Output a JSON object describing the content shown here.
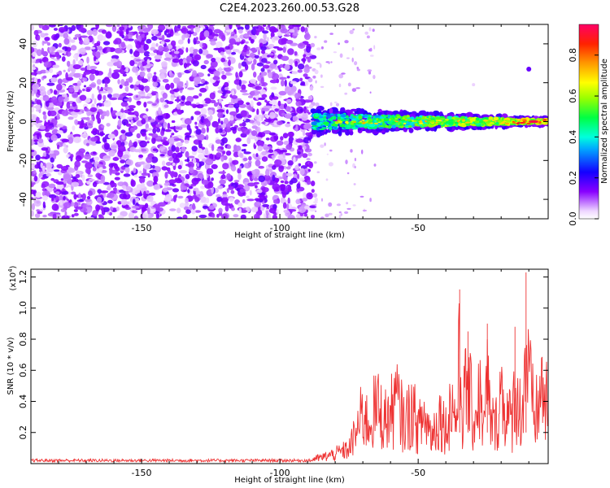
{
  "title": "C2E4.2023.260.00.53.G28",
  "chart_data": [
    {
      "type": "heatmap",
      "xlabel": "Height of straight line (km)",
      "ylabel": "Frequency (Hz)",
      "xlim": [
        -190,
        -3
      ],
      "ylim": [
        -50,
        50
      ],
      "xticks": [
        -150,
        -100,
        -50
      ],
      "yticks": [
        -40,
        -20,
        0,
        20,
        40
      ],
      "colorbar": {
        "label": "Normalized spectral amplitude",
        "range": [
          0,
          0.95
        ],
        "ticks": [
          0.0,
          0.2,
          0.4,
          0.6,
          0.8
        ]
      },
      "signal_band": {
        "x_start": -88,
        "x_end": -3,
        "center_freq": 0
      },
      "noise_region": {
        "x_start": -190,
        "x_end": -88,
        "typical_amplitude": 0.15
      }
    },
    {
      "type": "line",
      "xlabel": "Height of straight line (km)",
      "ylabel": "SNR (10 * v/v)",
      "y_multiplier": "(x10",
      "y_multiplier_exp": "4",
      "y_multiplier_close": ")",
      "xlim": [
        -190,
        -3
      ],
      "ylim": [
        0,
        1.25
      ],
      "xticks": [
        -150,
        -100,
        -50
      ],
      "yticks": [
        0.2,
        0.4,
        0.6,
        0.8,
        1.0,
        1.2
      ],
      "line_color": "#ee3333",
      "series": [
        {
          "x": [
            -190,
            -180,
            -170,
            -160,
            -150,
            -140,
            -130,
            -120,
            -110,
            -100,
            -95,
            -90,
            -85,
            -80,
            -75,
            -72,
            -70,
            -68,
            -65,
            -62,
            -60,
            -58,
            -55,
            -52,
            -50,
            -48,
            -45,
            -42,
            -40,
            -38,
            -36,
            -35,
            -34,
            -33,
            -32,
            -30,
            -28,
            -26,
            -25,
            -24,
            -22,
            -20,
            -18,
            -16,
            -15,
            -14,
            -12,
            -11,
            -10,
            -9,
            -8,
            -6,
            -5,
            -4,
            -3
          ],
          "y": [
            0.02,
            0.02,
            0.02,
            0.02,
            0.02,
            0.02,
            0.02,
            0.02,
            0.02,
            0.02,
            0.03,
            0.04,
            0.06,
            0.1,
            0.15,
            0.35,
            0.52,
            0.4,
            0.58,
            0.45,
            0.5,
            0.65,
            0.42,
            0.55,
            0.35,
            0.48,
            0.3,
            0.5,
            0.36,
            0.62,
            0.45,
            1.12,
            0.5,
            0.7,
            0.85,
            0.4,
            0.72,
            0.35,
            0.9,
            0.45,
            0.38,
            0.75,
            0.5,
            0.42,
            0.88,
            0.55,
            0.6,
            1.23,
            0.8,
            0.7,
            0.45,
            0.65,
            0.82,
            0.58,
            0.62
          ]
        }
      ]
    }
  ]
}
